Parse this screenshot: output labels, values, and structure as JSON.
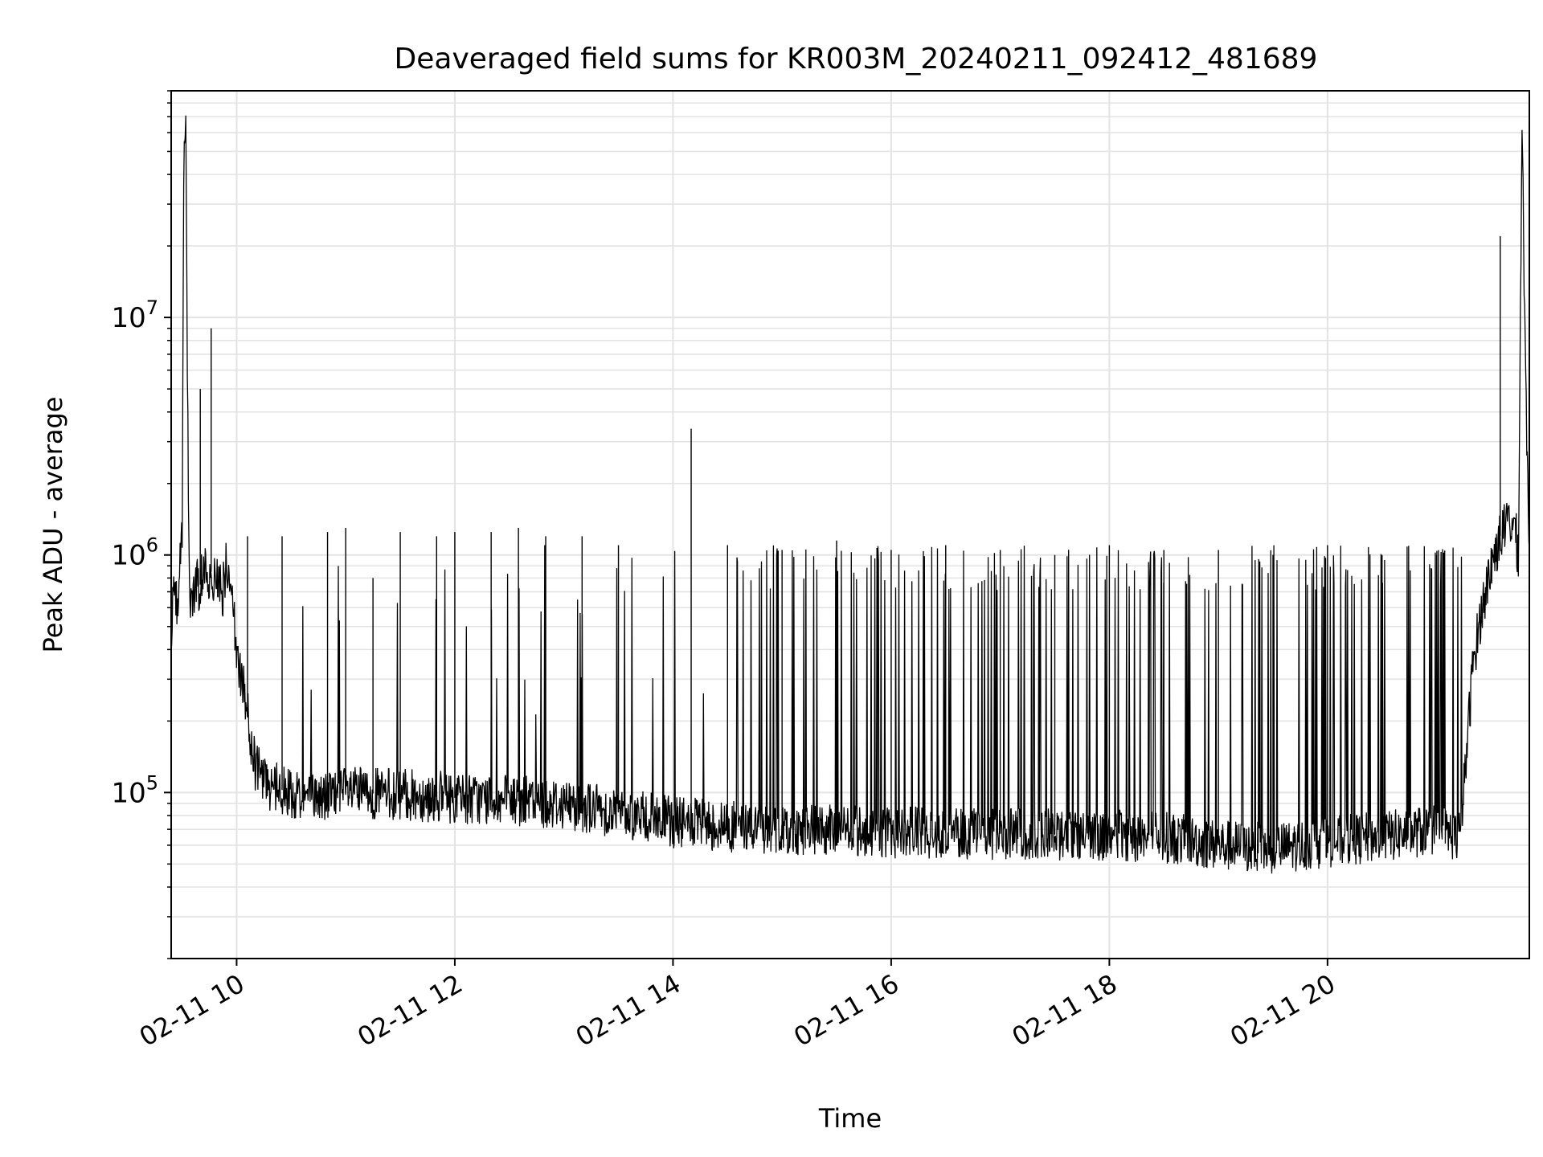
{
  "chart_data": {
    "type": "line",
    "title": "Deaveraged field sums for KR003M_20240211_092412_481689",
    "xlabel": "Time",
    "ylabel": "Peak ADU - average",
    "x_axis": {
      "kind": "datetime",
      "min": "2024-02-11T09:24",
      "max": "2024-02-11T21:51",
      "ticks": [
        {
          "value": "2024-02-11T10:00",
          "label": "02-11 10"
        },
        {
          "value": "2024-02-11T12:00",
          "label": "02-11 12"
        },
        {
          "value": "2024-02-11T14:00",
          "label": "02-11 14"
        },
        {
          "value": "2024-02-11T16:00",
          "label": "02-11 16"
        },
        {
          "value": "2024-02-11T18:00",
          "label": "02-11 18"
        },
        {
          "value": "2024-02-11T20:00",
          "label": "02-11 20"
        }
      ]
    },
    "y_axis": {
      "scale": "log",
      "ylim": [
        20000,
        90000000
      ],
      "major_ticks": [
        {
          "value": 100000,
          "base": "10",
          "exp": "5"
        },
        {
          "value": 1000000,
          "base": "10",
          "exp": "6"
        },
        {
          "value": 10000000,
          "base": "10",
          "exp": "7"
        }
      ]
    },
    "grid": "major+minor",
    "line_color": "#000000",
    "series": [
      {
        "x": [
          "2024-02-11T09:24",
          "2024-02-11T09:25",
          "2024-02-11T09:26",
          "2024-02-11T09:27",
          "2024-02-11T09:29",
          "2024-02-11T09:30",
          "2024-02-11T09:31",
          "2024-02-11T09:32",
          "2024-02-11T09:33",
          "2024-02-11T09:34",
          "2024-02-11T09:35",
          "2024-02-11T09:36",
          "2024-02-11T09:38",
          "2024-02-11T09:39",
          "2024-02-11T09:40",
          "2024-02-11T09:41",
          "2024-02-11T09:42",
          "2024-02-11T09:44",
          "2024-02-11T09:46",
          "2024-02-11T09:48",
          "2024-02-11T09:50",
          "2024-02-11T09:52",
          "2024-02-11T09:54",
          "2024-02-11T09:57",
          "2024-02-11T10:00",
          "2024-02-11T10:03",
          "2024-02-11T10:05",
          "2024-02-11T10:07",
          "2024-02-11T10:10",
          "2024-02-11T10:15",
          "2024-02-11T10:20",
          "2024-02-11T10:30",
          "2024-02-11T10:45",
          "2024-02-11T11:00",
          "2024-02-11T11:30",
          "2024-02-11T12:00",
          "2024-02-11T12:30",
          "2024-02-11T13:00",
          "2024-02-11T13:20",
          "2024-02-11T13:40",
          "2024-02-11T14:00",
          "2024-02-11T14:30",
          "2024-02-11T15:00",
          "2024-02-11T16:00",
          "2024-02-11T17:00",
          "2024-02-11T18:00",
          "2024-02-11T18:30",
          "2024-02-11T19:00",
          "2024-02-11T19:30",
          "2024-02-11T20:00",
          "2024-02-11T20:30",
          "2024-02-11T21:00",
          "2024-02-11T21:13",
          "2024-02-11T21:16",
          "2024-02-11T21:20",
          "2024-02-11T21:25",
          "2024-02-11T21:30",
          "2024-02-11T21:35",
          "2024-02-11T21:40",
          "2024-02-11T21:43",
          "2024-02-11T21:45",
          "2024-02-11T21:47",
          "2024-02-11T21:49",
          "2024-02-11T21:51"
        ],
        "y": [
          400000,
          700000,
          800000,
          600000,
          950000,
          1200000,
          55000000,
          66000000,
          5000000,
          700000,
          600000,
          650000,
          800000,
          700000,
          750000,
          800000,
          850000,
          800000,
          850000,
          750000,
          800000,
          650000,
          900000,
          700000,
          400000,
          300000,
          250000,
          180000,
          130000,
          110000,
          105000,
          100000,
          95000,
          100000,
          98000,
          95000,
          92000,
          90000,
          85000,
          80000,
          75000,
          72000,
          70000,
          68000,
          67000,
          66000,
          65000,
          60000,
          58000,
          62000,
          65000,
          70000,
          65000,
          130000,
          350000,
          600000,
          900000,
          1200000,
          1400000,
          1300000,
          1000000,
          68000000,
          5000000,
          1100000
        ]
      }
    ],
    "spikes": [
      {
        "x": "2024-02-11T09:40",
        "y": 5000000
      },
      {
        "x": "2024-02-11T09:46",
        "y": 9000000
      },
      {
        "x": "2024-02-11T10:06",
        "y": 1200000
      },
      {
        "x": "2024-02-11T10:25",
        "y": 1200000
      },
      {
        "x": "2024-02-11T10:50",
        "y": 1250000
      },
      {
        "x": "2024-02-11T11:00",
        "y": 1300000
      },
      {
        "x": "2024-02-11T11:15",
        "y": 800000
      },
      {
        "x": "2024-02-11T11:30",
        "y": 1250000
      },
      {
        "x": "2024-02-11T11:50",
        "y": 1200000
      },
      {
        "x": "2024-02-11T12:00",
        "y": 1250000
      },
      {
        "x": "2024-02-11T12:20",
        "y": 1250000
      },
      {
        "x": "2024-02-11T12:35",
        "y": 1300000
      },
      {
        "x": "2024-02-11T12:50",
        "y": 1200000
      },
      {
        "x": "2024-02-11T13:10",
        "y": 1200000
      },
      {
        "x": "2024-02-11T13:30",
        "y": 1100000
      },
      {
        "x": "2024-02-11T14:10",
        "y": 3400000
      },
      {
        "x": "2024-02-11T14:30",
        "y": 1100000
      },
      {
        "x": "2024-02-11T15:00",
        "y": 1050000
      },
      {
        "x": "2024-02-11T15:30",
        "y": 1150000
      },
      {
        "x": "2024-02-11T16:00",
        "y": 1050000
      },
      {
        "x": "2024-02-11T16:30",
        "y": 1100000
      },
      {
        "x": "2024-02-11T17:00",
        "y": 1050000
      },
      {
        "x": "2024-02-11T17:30",
        "y": 1000000
      },
      {
        "x": "2024-02-11T18:00",
        "y": 1100000
      },
      {
        "x": "2024-02-11T18:30",
        "y": 1050000
      },
      {
        "x": "2024-02-11T19:00",
        "y": 1050000
      },
      {
        "x": "2024-02-11T19:30",
        "y": 1000000
      },
      {
        "x": "2024-02-11T20:00",
        "y": 1100000
      },
      {
        "x": "2024-02-11T20:30",
        "y": 1000000
      },
      {
        "x": "2024-02-11T21:00",
        "y": 1000000
      },
      {
        "x": "2024-02-11T21:35",
        "y": 22000000
      }
    ]
  }
}
